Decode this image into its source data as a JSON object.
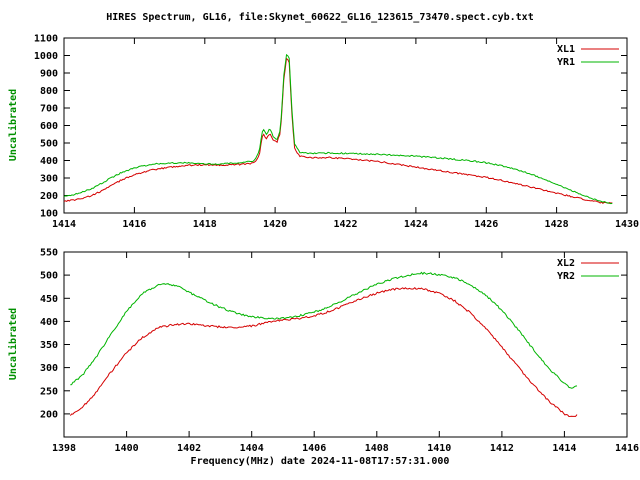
{
  "title": "HIRES Spectrum, GL16, file:Skynet_60622_GL16_123615_73470.spect.cyb.txt",
  "xlabel": "Frequency(MHz) date 2024-11-08T17:57:31.000",
  "colors": {
    "red": "#d40000",
    "green": "#00b400",
    "ylabel": "#009000",
    "axis": "#000000",
    "background": "#ffffff"
  },
  "chart_data": [
    {
      "type": "line",
      "panel": "top",
      "ylabel": "Uncalibrated",
      "xlim": [
        1414,
        1430
      ],
      "ylim": [
        100,
        1100
      ],
      "xticks": [
        1414,
        1416,
        1418,
        1420,
        1422,
        1424,
        1426,
        1428,
        1430
      ],
      "yticks": [
        100,
        200,
        300,
        400,
        500,
        600,
        700,
        800,
        900,
        1000,
        1100
      ],
      "grid": false,
      "legend_position": "top-right",
      "noise": 4,
      "series": [
        {
          "name": "XL1",
          "color": "#d40000",
          "points": [
            [
              1414.0,
              168
            ],
            [
              1414.4,
              178
            ],
            [
              1414.8,
              200
            ],
            [
              1415.2,
              240
            ],
            [
              1415.6,
              285
            ],
            [
              1416.0,
              320
            ],
            [
              1416.5,
              345
            ],
            [
              1417.0,
              362
            ],
            [
              1417.5,
              372
            ],
            [
              1418.0,
              376
            ],
            [
              1418.5,
              374
            ],
            [
              1419.0,
              378
            ],
            [
              1419.4,
              385
            ],
            [
              1419.55,
              430
            ],
            [
              1419.65,
              555
            ],
            [
              1419.75,
              525
            ],
            [
              1419.85,
              555
            ],
            [
              1419.95,
              515
            ],
            [
              1420.05,
              505
            ],
            [
              1420.15,
              555
            ],
            [
              1420.25,
              870
            ],
            [
              1420.33,
              995
            ],
            [
              1420.4,
              960
            ],
            [
              1420.48,
              650
            ],
            [
              1420.55,
              470
            ],
            [
              1420.7,
              425
            ],
            [
              1421.0,
              415
            ],
            [
              1421.5,
              417
            ],
            [
              1422.0,
              412
            ],
            [
              1422.5,
              402
            ],
            [
              1423.0,
              392
            ],
            [
              1423.5,
              378
            ],
            [
              1424.0,
              362
            ],
            [
              1424.5,
              347
            ],
            [
              1425.0,
              332
            ],
            [
              1425.5,
              318
            ],
            [
              1426.0,
              303
            ],
            [
              1426.5,
              283
            ],
            [
              1427.0,
              260
            ],
            [
              1427.5,
              238
            ],
            [
              1428.0,
              213
            ],
            [
              1428.5,
              190
            ],
            [
              1429.0,
              168
            ],
            [
              1429.3,
              158
            ],
            [
              1429.6,
              155
            ]
          ]
        },
        {
          "name": "YR1",
          "color": "#00b400",
          "points": [
            [
              1414.0,
              192
            ],
            [
              1414.4,
              212
            ],
            [
              1414.8,
              240
            ],
            [
              1415.2,
              285
            ],
            [
              1415.6,
              328
            ],
            [
              1416.0,
              358
            ],
            [
              1416.5,
              378
            ],
            [
              1417.0,
              386
            ],
            [
              1417.5,
              386
            ],
            [
              1418.0,
              381
            ],
            [
              1418.5,
              381
            ],
            [
              1419.0,
              388
            ],
            [
              1419.4,
              398
            ],
            [
              1419.55,
              450
            ],
            [
              1419.65,
              585
            ],
            [
              1419.75,
              550
            ],
            [
              1419.85,
              580
            ],
            [
              1419.95,
              535
            ],
            [
              1420.05,
              520
            ],
            [
              1420.15,
              575
            ],
            [
              1420.25,
              890
            ],
            [
              1420.33,
              1015
            ],
            [
              1420.4,
              985
            ],
            [
              1420.48,
              680
            ],
            [
              1420.55,
              495
            ],
            [
              1420.7,
              448
            ],
            [
              1421.0,
              440
            ],
            [
              1421.5,
              443
            ],
            [
              1422.0,
              441
            ],
            [
              1422.5,
              438
            ],
            [
              1423.0,
              434
            ],
            [
              1423.5,
              429
            ],
            [
              1424.0,
              424
            ],
            [
              1424.5,
              417
            ],
            [
              1425.0,
              409
            ],
            [
              1425.5,
              399
            ],
            [
              1426.0,
              387
            ],
            [
              1426.5,
              367
            ],
            [
              1427.0,
              340
            ],
            [
              1427.5,
              305
            ],
            [
              1428.0,
              263
            ],
            [
              1428.5,
              222
            ],
            [
              1429.0,
              183
            ],
            [
              1429.3,
              165
            ],
            [
              1429.6,
              153
            ]
          ]
        }
      ]
    },
    {
      "type": "line",
      "panel": "bottom",
      "ylabel": "Uncalibrated",
      "xlim": [
        1398,
        1416
      ],
      "ylim": [
        150,
        550
      ],
      "xticks": [
        1398,
        1400,
        1402,
        1404,
        1406,
        1408,
        1410,
        1412,
        1414,
        1416
      ],
      "yticks": [
        200,
        250,
        300,
        350,
        400,
        450,
        500,
        550
      ],
      "grid": false,
      "legend_position": "top-right",
      "noise": 2,
      "series": [
        {
          "name": "XL2",
          "color": "#d40000",
          "points": [
            [
              1398.2,
              197
            ],
            [
              1398.6,
              215
            ],
            [
              1399.0,
              245
            ],
            [
              1399.5,
              290
            ],
            [
              1400.0,
              332
            ],
            [
              1400.5,
              365
            ],
            [
              1401.0,
              386
            ],
            [
              1401.5,
              393
            ],
            [
              1402.0,
              395
            ],
            [
              1402.5,
              391
            ],
            [
              1403.0,
              388
            ],
            [
              1403.5,
              387
            ],
            [
              1404.0,
              390
            ],
            [
              1404.5,
              398
            ],
            [
              1405.0,
              403
            ],
            [
              1405.5,
              406
            ],
            [
              1406.0,
              412
            ],
            [
              1406.5,
              422
            ],
            [
              1407.0,
              435
            ],
            [
              1407.5,
              449
            ],
            [
              1408.0,
              461
            ],
            [
              1408.5,
              469
            ],
            [
              1409.0,
              472
            ],
            [
              1409.5,
              470
            ],
            [
              1410.0,
              461
            ],
            [
              1410.5,
              444
            ],
            [
              1411.0,
              418
            ],
            [
              1411.5,
              384
            ],
            [
              1412.0,
              344
            ],
            [
              1412.5,
              303
            ],
            [
              1413.0,
              263
            ],
            [
              1413.5,
              228
            ],
            [
              1414.0,
              200
            ],
            [
              1414.2,
              194
            ],
            [
              1414.4,
              197
            ]
          ]
        },
        {
          "name": "YR2",
          "color": "#00b400",
          "points": [
            [
              1398.2,
              262
            ],
            [
              1398.6,
              285
            ],
            [
              1399.0,
              320
            ],
            [
              1399.5,
              372
            ],
            [
              1400.0,
              422
            ],
            [
              1400.5,
              460
            ],
            [
              1401.0,
              478
            ],
            [
              1401.3,
              482
            ],
            [
              1401.7,
              474
            ],
            [
              1402.0,
              463
            ],
            [
              1402.5,
              446
            ],
            [
              1403.0,
              430
            ],
            [
              1403.5,
              418
            ],
            [
              1404.0,
              410
            ],
            [
              1404.5,
              406
            ],
            [
              1405.0,
              407
            ],
            [
              1405.5,
              412
            ],
            [
              1406.0,
              420
            ],
            [
              1406.5,
              432
            ],
            [
              1407.0,
              448
            ],
            [
              1407.5,
              465
            ],
            [
              1408.0,
              480
            ],
            [
              1408.5,
              492
            ],
            [
              1409.0,
              500
            ],
            [
              1409.4,
              504
            ],
            [
              1409.8,
              503
            ],
            [
              1410.2,
              499
            ],
            [
              1410.6,
              492
            ],
            [
              1411.0,
              478
            ],
            [
              1411.5,
              456
            ],
            [
              1412.0,
              424
            ],
            [
              1412.5,
              384
            ],
            [
              1413.0,
              340
            ],
            [
              1413.5,
              298
            ],
            [
              1414.0,
              266
            ],
            [
              1414.2,
              256
            ],
            [
              1414.4,
              261
            ]
          ]
        }
      ]
    }
  ]
}
